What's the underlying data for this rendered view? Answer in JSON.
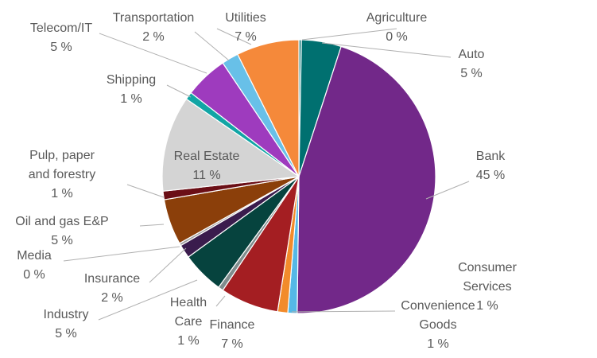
{
  "chart_data": {
    "type": "pie",
    "title": "",
    "start_angle_deg": 0,
    "direction": "clockwise",
    "slices": [
      {
        "label": "Agriculture",
        "value_text": "0 %",
        "value": 0.3,
        "color": "#2f8a8a"
      },
      {
        "label": "Auto",
        "value_text": "5 %",
        "value": 4.7,
        "color": "#007070"
      },
      {
        "label": "Bank",
        "value_text": "45 %",
        "value": 45.2,
        "color": "#722889"
      },
      {
        "label": "Consumer Services",
        "value_text": "1 %",
        "value": 1.1,
        "color": "#55b8e6"
      },
      {
        "label": "Convenience Goods",
        "value_text": "1 %",
        "value": 1.2,
        "color": "#f28b2b"
      },
      {
        "label": "Finance",
        "value_text": "7 %",
        "value": 6.9,
        "color": "#a41e22"
      },
      {
        "label": "Health Care",
        "value_text": "1 %",
        "value": 0.6,
        "color": "#7f8c8d"
      },
      {
        "label": "Industry",
        "value_text": "5 %",
        "value": 5.0,
        "color": "#06433e"
      },
      {
        "label": "Insurance",
        "value_text": "2 %",
        "value": 1.6,
        "color": "#3a1c4d"
      },
      {
        "label": "Media",
        "value_text": "0 %",
        "value": 0.3,
        "color": "#a0a0a0"
      },
      {
        "label": "Oil and gas E&P",
        "value_text": "5 %",
        "value": 5.4,
        "color": "#8b3f0a"
      },
      {
        "label": "Pulp, paper and forestry",
        "value_text": "1 %",
        "value": 1.0,
        "color": "#6b0f16"
      },
      {
        "label": "Real Estate",
        "value_text": "11 %",
        "value": 11.3,
        "color": "#d4d4d4"
      },
      {
        "label": "Shipping",
        "value_text": "1 %",
        "value": 0.9,
        "color": "#12a5a5"
      },
      {
        "label": "Telecom/IT",
        "value_text": "5 %",
        "value": 5.1,
        "color": "#9e3bbe"
      },
      {
        "label": "Transportation",
        "value_text": "2 %",
        "value": 2.0,
        "color": "#68c0e8"
      },
      {
        "label": "Utilities",
        "value_text": "7 %",
        "value": 7.4,
        "color": "#f5893a"
      }
    ]
  }
}
